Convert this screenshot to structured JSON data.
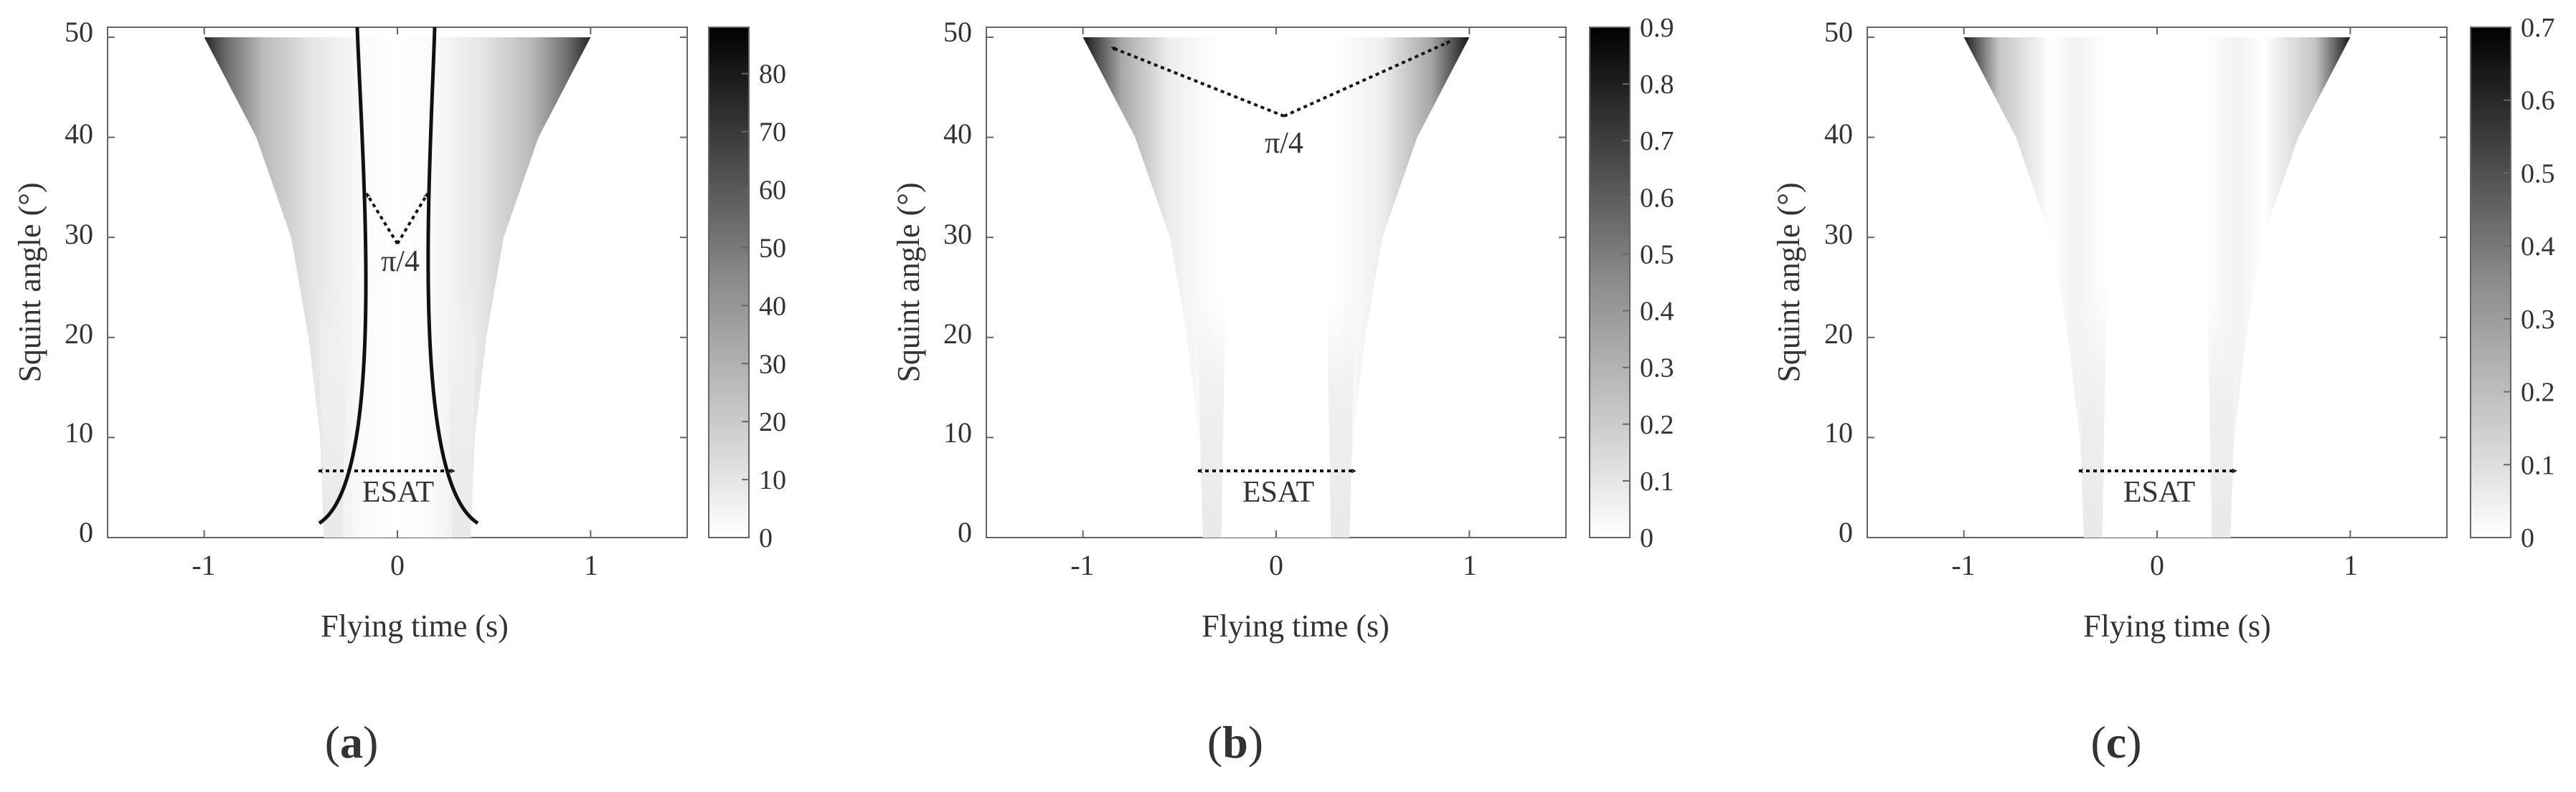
{
  "figure": {
    "panels": [
      {
        "id": "a",
        "label_open": "(",
        "label_letter": "a",
        "label_close": ")"
      },
      {
        "id": "b",
        "label_open": "(",
        "label_letter": "b",
        "label_close": ")"
      },
      {
        "id": "c",
        "label_open": "(",
        "label_letter": "c",
        "label_close": ")"
      }
    ]
  },
  "chart_data": [
    {
      "type": "heatmap",
      "panel": "a",
      "xlabel": "Flying time (s)",
      "ylabel": "Squint angle (°)",
      "xlim": [
        -1.5,
        1.5
      ],
      "ylim": [
        0,
        51
      ],
      "xticks": [
        -1,
        0,
        1
      ],
      "xtick_labels": [
        "-1",
        "0",
        "1"
      ],
      "yticks": [
        0,
        10,
        20,
        30,
        40,
        50
      ],
      "ytick_labels": [
        "0",
        "10",
        "20",
        "30",
        "40",
        "50"
      ],
      "colormap": "gray (white = low, black = high)",
      "colorbar": {
        "min": 0,
        "max": 88,
        "ticks": [
          0,
          10,
          20,
          30,
          40,
          50,
          60,
          70,
          80
        ],
        "tick_labels": [
          "0",
          "10",
          "20",
          "30",
          "40",
          "50",
          "60",
          "70",
          "80"
        ]
      },
      "region_half_width": {
        "squint_angle": [
          0,
          10,
          20,
          30,
          40,
          50
        ],
        "flying_time": [
          0.38,
          0.4,
          0.46,
          0.55,
          0.73,
          1.0
        ]
      },
      "annotations": [
        "π/4",
        "ESAT"
      ],
      "grid": false
    },
    {
      "type": "heatmap",
      "panel": "b",
      "xlabel": "Flying time (s)",
      "ylabel": "Squint angle (°)",
      "xlim": [
        -1.5,
        1.5
      ],
      "ylim": [
        0,
        51
      ],
      "xticks": [
        -1,
        0,
        1
      ],
      "xtick_labels": [
        "-1",
        "0",
        "1"
      ],
      "yticks": [
        0,
        10,
        20,
        30,
        40,
        50
      ],
      "ytick_labels": [
        "0",
        "10",
        "20",
        "30",
        "40",
        "50"
      ],
      "colormap": "gray (white = low, black = high)",
      "colorbar": {
        "min": 0,
        "max": 0.9,
        "ticks": [
          0,
          0.1,
          0.2,
          0.3,
          0.4,
          0.5,
          0.6,
          0.7,
          0.8,
          0.9
        ],
        "tick_labels": [
          "0",
          "0.1",
          "0.2",
          "0.3",
          "0.4",
          "0.5",
          "0.6",
          "0.7",
          "0.8",
          "0.9"
        ]
      },
      "region_half_width": {
        "squint_angle": [
          0,
          10,
          20,
          30,
          40,
          50
        ],
        "flying_time": [
          0.38,
          0.4,
          0.46,
          0.55,
          0.73,
          1.0
        ]
      },
      "annotations": [
        "π/4",
        "ESAT"
      ],
      "grid": false
    },
    {
      "type": "heatmap",
      "panel": "c",
      "xlabel": "Flying time (s)",
      "ylabel": "Squint angle (°)",
      "xlim": [
        -1.5,
        1.5
      ],
      "ylim": [
        0,
        51
      ],
      "xticks": [
        -1,
        0,
        1
      ],
      "xtick_labels": [
        "-1",
        "0",
        "1"
      ],
      "yticks": [
        0,
        10,
        20,
        30,
        40,
        50
      ],
      "ytick_labels": [
        "0",
        "10",
        "20",
        "30",
        "40",
        "50"
      ],
      "colormap": "gray (white = low, black = high)",
      "colorbar": {
        "min": 0,
        "max": 0.7,
        "ticks": [
          0,
          0.1,
          0.2,
          0.3,
          0.4,
          0.5,
          0.6,
          0.7
        ],
        "tick_labels": [
          "0",
          "0.1",
          "0.2",
          "0.3",
          "0.4",
          "0.5",
          "0.6",
          "0.7"
        ]
      },
      "region_half_width": {
        "squint_angle": [
          0,
          10,
          20,
          30,
          40,
          50
        ],
        "flying_time": [
          0.38,
          0.4,
          0.46,
          0.55,
          0.73,
          1.0
        ]
      },
      "annotations": [
        "ESAT"
      ],
      "grid": false
    }
  ]
}
